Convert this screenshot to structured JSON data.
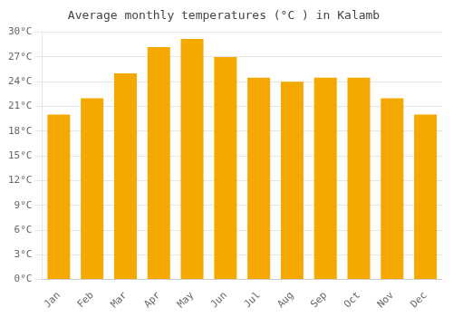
{
  "chart_data": {
    "type": "bar",
    "title": "Average monthly temperatures (°C ) in Kalamb",
    "categories": [
      "Jan",
      "Feb",
      "Mar",
      "Apr",
      "May",
      "Jun",
      "Jul",
      "Aug",
      "Sep",
      "Oct",
      "Nov",
      "Dec"
    ],
    "values": [
      20.0,
      22.0,
      25.0,
      28.2,
      29.2,
      27.0,
      24.5,
      24.0,
      24.5,
      24.5,
      22.0,
      20.0
    ],
    "color": "#F5A800",
    "ylim": [
      0,
      30
    ],
    "yticks": [
      {
        "value": 0,
        "label": "0°C"
      },
      {
        "value": 3,
        "label": "3°C"
      },
      {
        "value": 6,
        "label": "6°C"
      },
      {
        "value": 9,
        "label": "9°C"
      },
      {
        "value": 12,
        "label": "12°C"
      },
      {
        "value": 15,
        "label": "15°C"
      },
      {
        "value": 18,
        "label": "18°C"
      },
      {
        "value": 21,
        "label": "21°C"
      },
      {
        "value": 24,
        "label": "24°C"
      },
      {
        "value": 27,
        "label": "27°C"
      },
      {
        "value": 30,
        "label": "30°C"
      }
    ],
    "grid": true
  }
}
